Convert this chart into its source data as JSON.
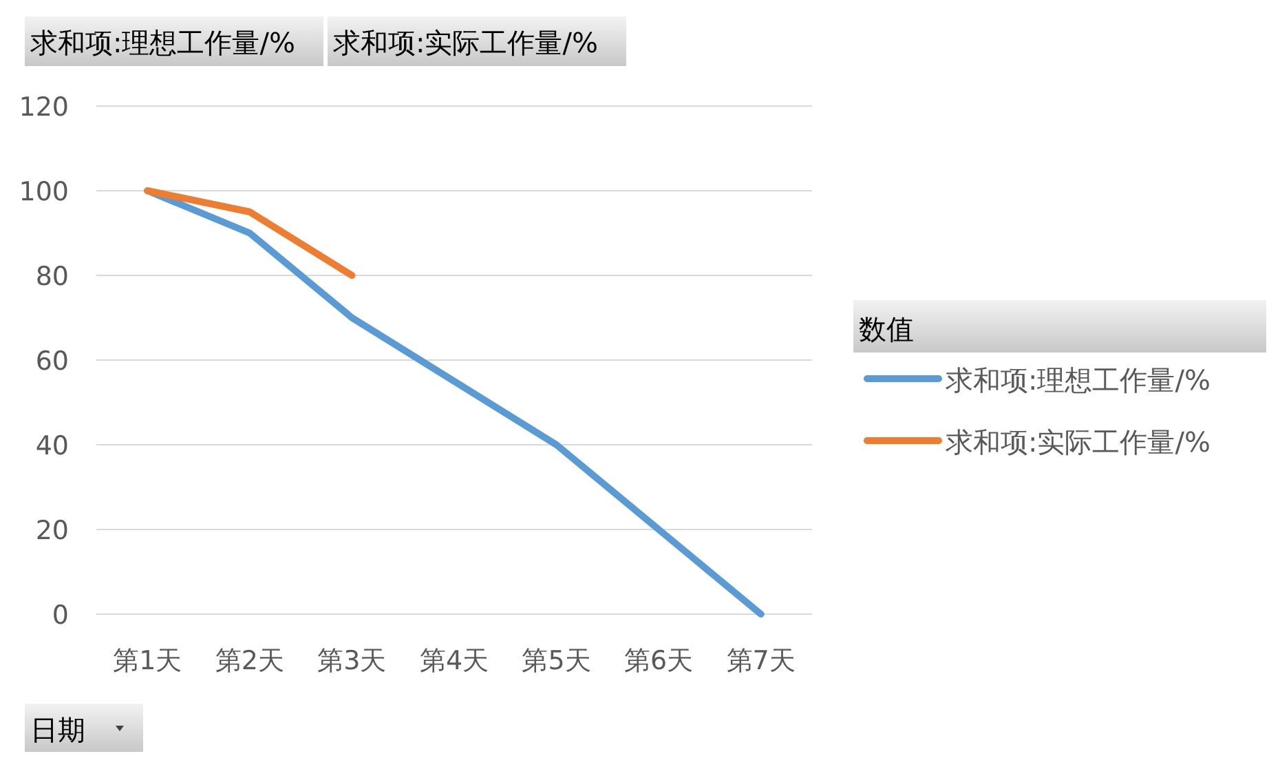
{
  "chart_data": {
    "type": "line",
    "categories": [
      "第1天",
      "第2天",
      "第3天",
      "第4天",
      "第5天",
      "第6天",
      "第7天"
    ],
    "series": [
      {
        "name": "求和项:理想工作量/%",
        "color": "#5b9bd5",
        "values": [
          100,
          90,
          70,
          55,
          40,
          20,
          0
        ]
      },
      {
        "name": "求和项:实际工作量/%",
        "color": "#ed7d31",
        "values": [
          100,
          95,
          80,
          null,
          null,
          null,
          null
        ]
      }
    ],
    "ylim": [
      0,
      120
    ],
    "yticks": [
      0,
      20,
      40,
      60,
      80,
      100,
      120
    ],
    "grid": "y",
    "legend": "right",
    "legend_title": "数值",
    "xlabel": "日期",
    "annotations": [
      "求和项:理想工作量/%",
      "求和项:实际工作量/%"
    ],
    "marker": "none",
    "line_style": "solid"
  }
}
